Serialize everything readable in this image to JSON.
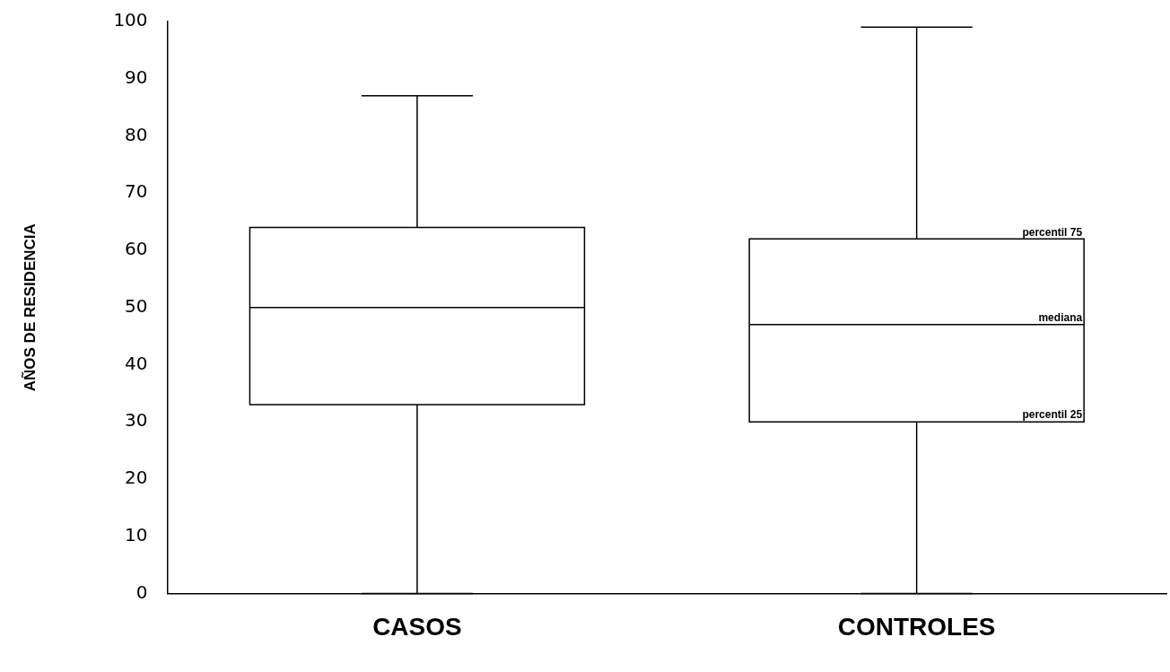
{
  "chart_data": {
    "type": "box",
    "ylabel": "AÑOS DE RESIDENCIA",
    "categories": [
      "CASOS",
      "CONTROLES"
    ],
    "boxes": [
      {
        "low": 0,
        "q1": 33,
        "median": 50,
        "q3": 64,
        "high": 87
      },
      {
        "low": 0,
        "q1": 30,
        "median": 47,
        "q3": 62,
        "high": 99
      }
    ],
    "ylim": [
      0,
      100
    ],
    "yticks": [
      0,
      10,
      20,
      30,
      40,
      50,
      60,
      70,
      80,
      90,
      100
    ],
    "grid": false,
    "annotations": [
      "percentil 75",
      "mediana",
      "percentil 25"
    ]
  }
}
